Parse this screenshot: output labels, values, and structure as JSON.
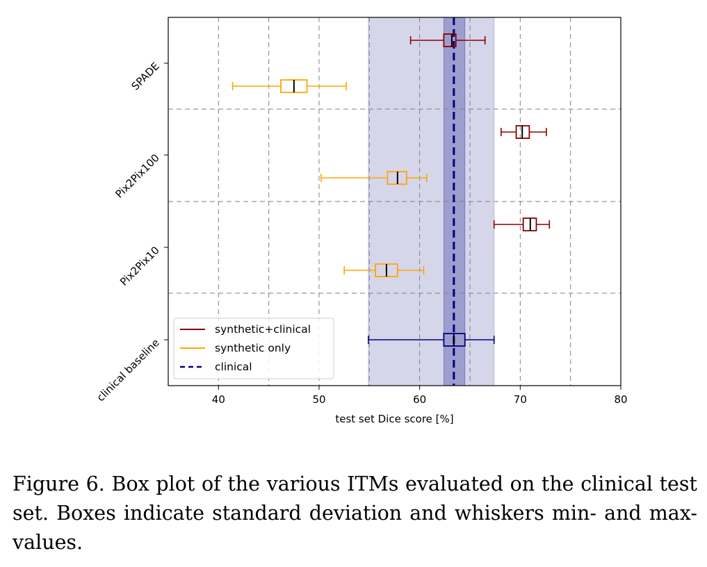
{
  "chart_data": {
    "type": "box",
    "orientation": "horizontal",
    "xlabel": "test set Dice score [%]",
    "xlim": [
      35,
      80
    ],
    "xticks": [
      40,
      50,
      60,
      70,
      80
    ],
    "grid": true,
    "legend_position": "bottom-left",
    "categories": [
      "SPADE",
      "Pix2Pix100",
      "Pix2Pix10",
      "clinical baseline"
    ],
    "series": [
      {
        "name": "synthetic+clinical",
        "color": "#8b0000",
        "boxes": [
          {
            "category": "SPADE",
            "min": 59.1,
            "q1": 62.4,
            "median": 63.2,
            "q3": 63.6,
            "max": 66.5
          },
          {
            "category": "Pix2Pix100",
            "min": 68.1,
            "q1": 69.6,
            "median": 70.2,
            "q3": 70.9,
            "max": 72.6
          },
          {
            "category": "Pix2Pix10",
            "min": 67.4,
            "q1": 70.3,
            "median": 71.0,
            "q3": 71.6,
            "max": 72.9
          }
        ]
      },
      {
        "name": "synthetic only",
        "color": "#ffa500",
        "boxes": [
          {
            "category": "SPADE",
            "min": 41.4,
            "q1": 46.2,
            "median": 47.5,
            "q3": 48.8,
            "max": 52.7
          },
          {
            "category": "Pix2Pix100",
            "min": 50.2,
            "q1": 56.8,
            "median": 57.8,
            "q3": 58.7,
            "max": 60.7
          },
          {
            "category": "Pix2Pix10",
            "min": 52.5,
            "q1": 55.6,
            "median": 56.7,
            "q3": 57.8,
            "max": 60.4
          }
        ]
      },
      {
        "name": "clinical",
        "color": "#00007f",
        "boxes": [
          {
            "category": "clinical baseline",
            "min": 54.9,
            "q1": 62.4,
            "median": 63.4,
            "q3": 64.5,
            "max": 67.4
          }
        ]
      }
    ],
    "reference": {
      "name": "clinical",
      "value": 63.4,
      "inner_band": [
        62.4,
        64.5
      ],
      "outer_band": [
        54.9,
        67.4
      ],
      "band_color": "#00007f"
    }
  },
  "caption": "Figure 6. Box plot of the various ITMs evaluated on the clinical test set. Boxes indicate standard deviation and whiskers min- and max-values."
}
